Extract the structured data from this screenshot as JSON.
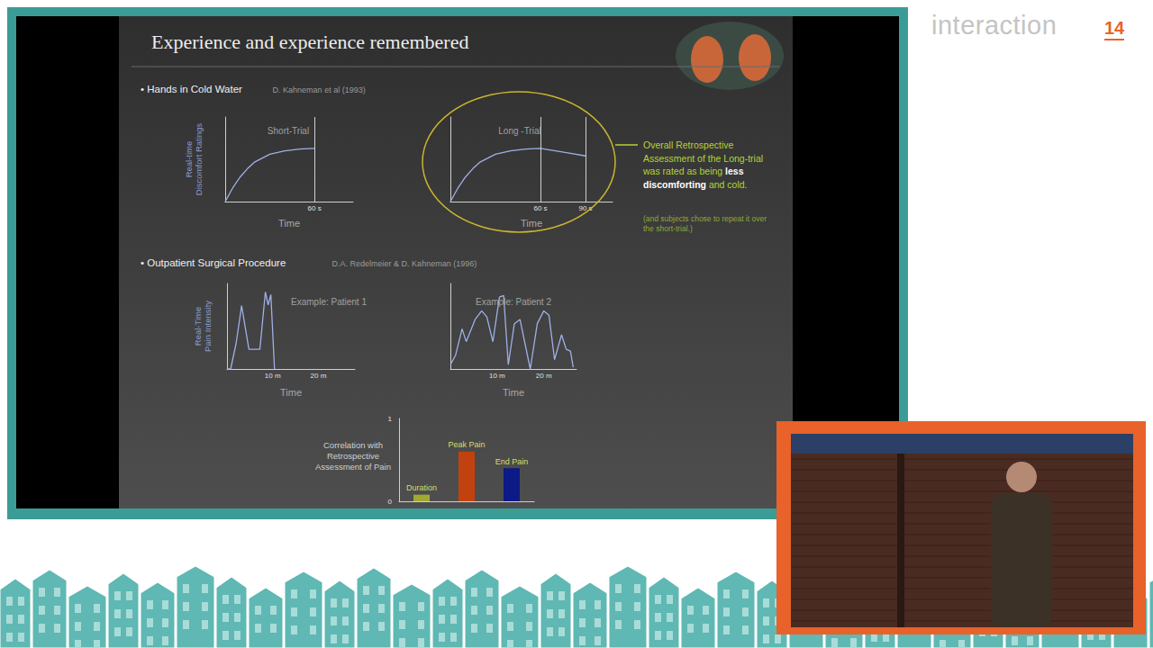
{
  "page": {
    "logo": {
      "text": "interaction",
      "number": "14"
    },
    "slide_title": "Experience and experience remembered",
    "sections": [
      {
        "text": "• Hands in Cold Water",
        "citation": "D. Kahneman et al (1993)"
      },
      {
        "text": "• Outpatient Surgical Procedure",
        "citation": "D.A. Redelmeier & D. Kahneman (1996)"
      }
    ],
    "annotation": {
      "parts": [
        {
          "text": "Overall Retrospective Assessment of the Long-trial was rated as being ",
          "bold": false
        },
        {
          "text": "less discomforting",
          "bold": true
        },
        {
          "text": " and cold.",
          "bold": false
        }
      ],
      "note": "(and subjects chose to repeat it over the short-trial.)"
    }
  },
  "chart_data": [
    {
      "type": "line",
      "title": "Short-Trial",
      "x_label": "Time",
      "y_label": "Real-time Discomfort Ratings",
      "x": [
        0,
        5,
        10,
        15,
        20,
        30,
        40,
        50,
        60
      ],
      "values": [
        0,
        1.6,
        2.9,
        3.9,
        4.7,
        5.6,
        6.0,
        6.2,
        6.3
      ],
      "color": "#9fb0e6",
      "xlim": [
        0,
        86
      ],
      "xticks": [
        {
          "value": 60,
          "label": "60 s"
        }
      ],
      "ylim": [
        0,
        10
      ],
      "yticks": [],
      "tick_labels": "x",
      "grid": true
    },
    {
      "type": "line",
      "title": "Long -Trial",
      "x_label": "Time",
      "x": [
        0,
        5,
        10,
        15,
        20,
        30,
        40,
        50,
        60,
        70,
        80,
        90
      ],
      "values": [
        0,
        1.6,
        2.9,
        3.9,
        4.7,
        5.6,
        6.0,
        6.2,
        6.3,
        6.0,
        5.7,
        5.4
      ],
      "color": "#9fb0e6",
      "xlim": [
        0,
        108
      ],
      "xticks": [
        {
          "value": 60,
          "label": "60 s"
        },
        {
          "value": 90,
          "label": "90 s"
        }
      ],
      "ylim": [
        0,
        10
      ],
      "yticks": [],
      "tick_labels": "x",
      "grid": true
    },
    {
      "type": "line",
      "title": "Example: Patient 1",
      "x_label": "Time",
      "y_label": "Real-Time Pain Intensity",
      "x": [
        0,
        0.8,
        2,
        3.2,
        4.8,
        7.2,
        8.4,
        9,
        9.6,
        10.4
      ],
      "values": [
        0,
        0,
        3,
        7.4,
        2.3,
        2.3,
        9,
        7.5,
        8.7,
        0
      ],
      "color": "#9fb0e6",
      "xlim": [
        0,
        28
      ],
      "xticks": [
        {
          "value": 10,
          "label": "10 m"
        },
        {
          "value": 20,
          "label": "20 m"
        }
      ],
      "ylim": [
        0,
        10
      ],
      "yticks": [],
      "tick_labels": "x",
      "grid": false
    },
    {
      "type": "line",
      "title": "Example: Patient 2",
      "x_label": "Time",
      "x": [
        0,
        1.1,
        2.5,
        3.4,
        5.3,
        6.7,
        7.8,
        9.1,
        10.5,
        11.4,
        12.4,
        13.7,
        14.9,
        17.1,
        18.6,
        20,
        21.1,
        22.3,
        23.8,
        24.8,
        25.7,
        26.3
      ],
      "values": [
        0.5,
        1.6,
        4.7,
        3.2,
        5.8,
        6.8,
        6.1,
        3.2,
        8.4,
        8.6,
        0.5,
        5.3,
        5.8,
        0,
        5.3,
        6.8,
        6.3,
        1.1,
        4,
        2.3,
        2.1,
        0.2
      ],
      "color": "#9fb0e6",
      "xlim": [
        0,
        27
      ],
      "xticks": [
        {
          "value": 10,
          "label": "10 m"
        },
        {
          "value": 20,
          "label": "20 m"
        }
      ],
      "ylim": [
        0,
        10
      ],
      "yticks": [],
      "tick_labels": "x",
      "grid": false
    },
    {
      "type": "bar",
      "y_label": "Correlation with Retrospective Assessment of Pain",
      "categories": [
        "Duration",
        "Peak Pain",
        "End Pain"
      ],
      "values": [
        0.08,
        0.6,
        0.4
      ],
      "colors": [
        "#a3a832",
        "#c2420f",
        "#0b1a86"
      ],
      "ylim": [
        0,
        1
      ],
      "yticks": [
        0,
        1
      ],
      "tick_labels": "y",
      "grid": false
    }
  ]
}
